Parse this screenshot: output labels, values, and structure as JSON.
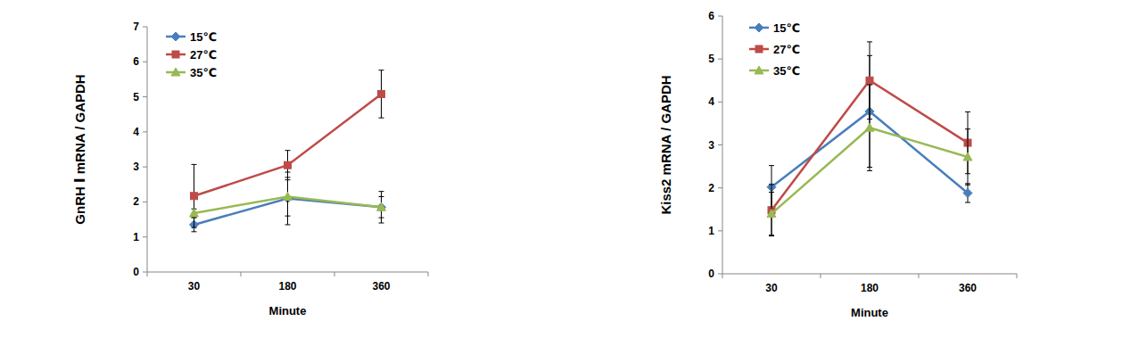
{
  "chart_data": [
    {
      "type": "line",
      "y_label": "GnRH Ⅰ mRNA / GAPDH",
      "x_label": "Minute",
      "categories": [
        30,
        180,
        360
      ],
      "ylim": [
        0,
        7
      ],
      "yticks": [
        0,
        1,
        2,
        3,
        4,
        5,
        6,
        7
      ],
      "grid": false,
      "legend": "top-left",
      "series": [
        {
          "name": "15℃",
          "color": "#4a7ebb",
          "marker": "diamond",
          "values": [
            1.35,
            2.1,
            1.85
          ],
          "errors": [
            0.2,
            0.75,
            0.45
          ]
        },
        {
          "name": "27℃",
          "color": "#be4b48",
          "marker": "square",
          "values": [
            2.17,
            3.05,
            5.08
          ],
          "errors": [
            0.9,
            0.42,
            0.68
          ]
        },
        {
          "name": "35℃",
          "color": "#98b954",
          "marker": "triangle",
          "values": [
            1.68,
            2.15,
            1.85
          ],
          "errors": [
            0.12,
            0.55,
            0.3
          ]
        }
      ]
    },
    {
      "type": "line",
      "y_label": "Kiss2 mRNA / GAPDH",
      "x_label": "Minute",
      "categories": [
        30,
        180,
        360
      ],
      "ylim": [
        0,
        6
      ],
      "yticks": [
        0,
        1,
        2,
        3,
        4,
        5,
        6
      ],
      "grid": false,
      "legend": "top-left",
      "series": [
        {
          "name": "15℃",
          "color": "#4a7ebb",
          "marker": "diamond",
          "values": [
            2.02,
            3.78,
            1.88
          ],
          "errors": [
            0.5,
            1.3,
            0.22
          ]
        },
        {
          "name": "27℃",
          "color": "#be4b48",
          "marker": "square",
          "values": [
            1.48,
            4.5,
            3.05
          ],
          "errors": [
            0.6,
            0.9,
            0.72
          ]
        },
        {
          "name": "35℃",
          "color": "#98b954",
          "marker": "triangle",
          "values": [
            1.4,
            3.4,
            2.72
          ],
          "errors": [
            0.5,
            1.0,
            0.65
          ]
        }
      ]
    }
  ]
}
